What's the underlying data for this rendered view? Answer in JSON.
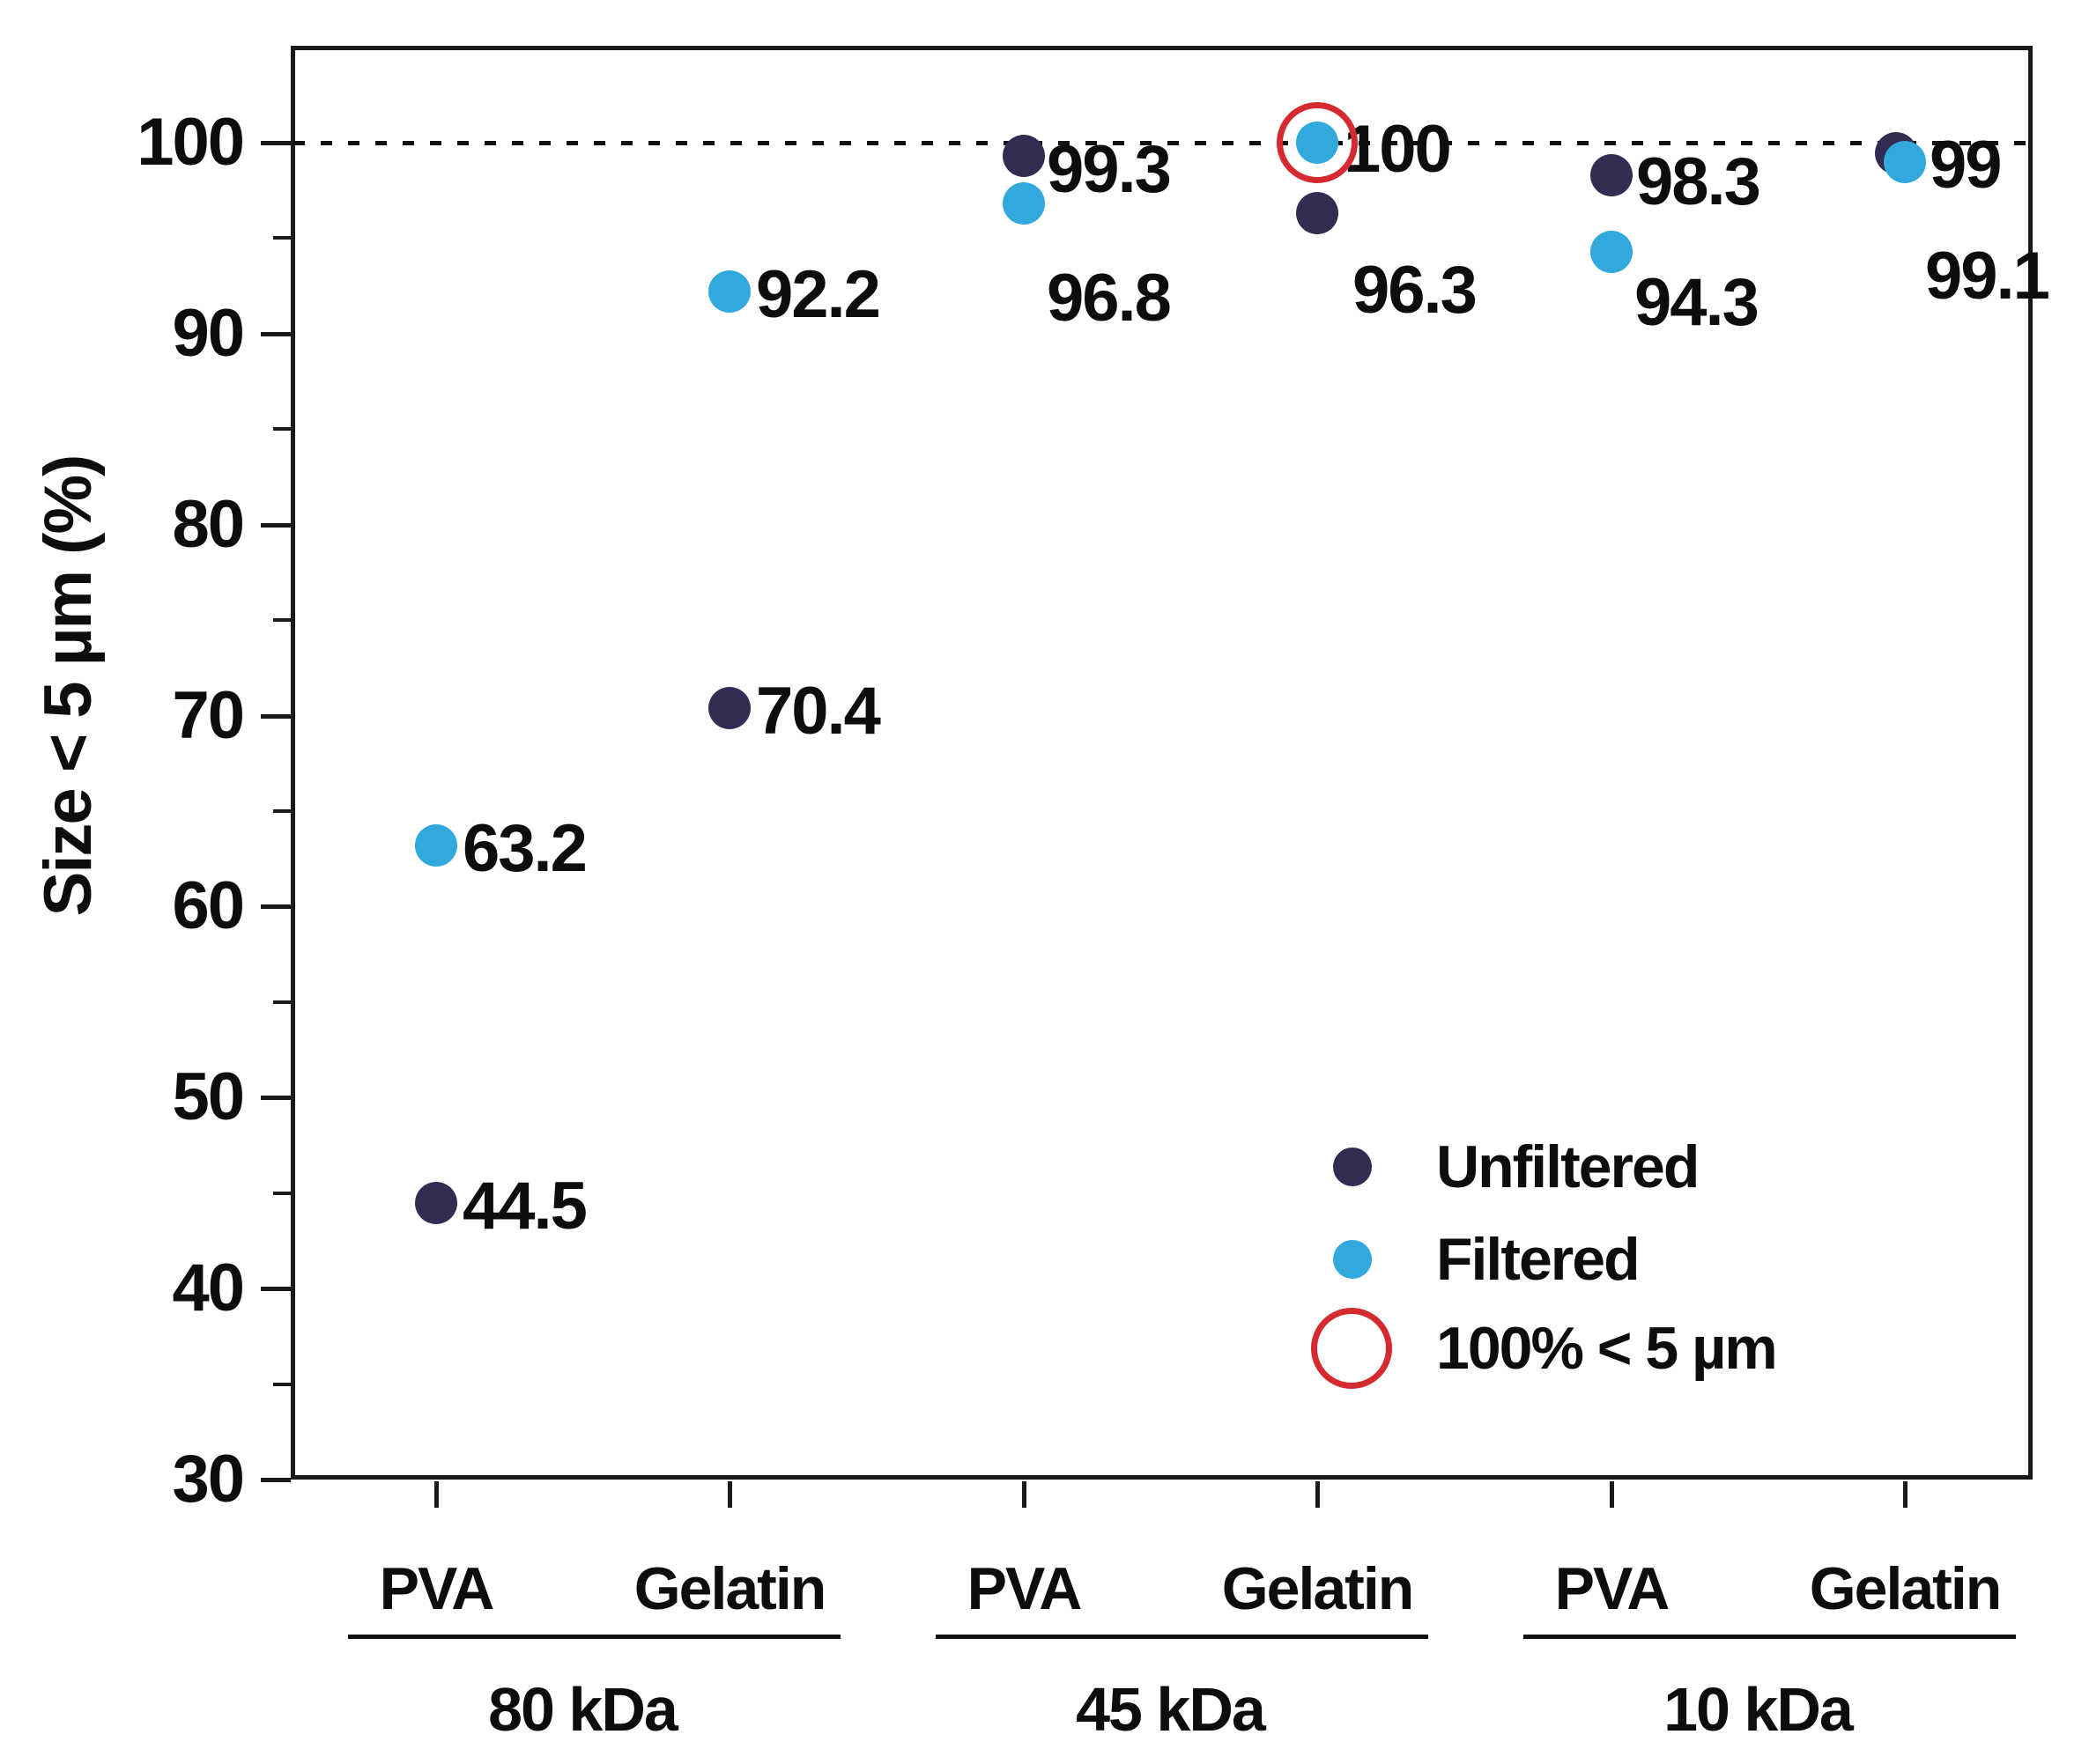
{
  "chart_data": {
    "type": "scatter",
    "title": "",
    "ylabel": "Size < 5 µm (%)",
    "xlabel": "",
    "ylim": [
      30,
      105
    ],
    "yticks": [
      30,
      40,
      50,
      60,
      70,
      80,
      90,
      100
    ],
    "yticks_minor": [
      35,
      45,
      55,
      65,
      75,
      85,
      95
    ],
    "reference_line_y": 100,
    "grid": false,
    "legend_position": "lower right",
    "groups": [
      {
        "label": "80 kDa",
        "categories": [
          "PVA",
          "Gelatin"
        ]
      },
      {
        "label": "45 kDa",
        "categories": [
          "PVA",
          "Gelatin"
        ]
      },
      {
        "label": "10 kDa",
        "categories": [
          "PVA",
          "Gelatin"
        ]
      }
    ],
    "series": [
      {
        "name": "Unfiltered",
        "color": "#332c52",
        "values": [
          44.5,
          70.4,
          99.3,
          96.3,
          98.3,
          99.1
        ],
        "point_labels": [
          "44.5",
          "70.4",
          "99.3",
          "96.3",
          "98.3",
          "99.1"
        ],
        "label_offsets": [
          [
            30,
            4
          ],
          [
            30,
            4
          ],
          [
            26,
            16
          ],
          [
            40,
            88
          ],
          [
            28,
            8
          ],
          [
            23,
            132
          ]
        ]
      },
      {
        "name": "Filtered",
        "color": "#31a9dc",
        "values": [
          63.2,
          92.2,
          96.8,
          100,
          94.3,
          99
        ],
        "point_labels": [
          "63.2",
          "92.2",
          "96.8",
          "100",
          "94.3",
          "99"
        ],
        "label_offsets": [
          [
            30,
            4
          ],
          [
            30,
            4
          ],
          [
            26,
            108
          ],
          [
            30,
            8
          ],
          [
            26,
            58
          ],
          [
            28,
            4
          ]
        ]
      }
    ],
    "highlight": {
      "series": "Filtered",
      "group": "45 kDa",
      "category": "Gelatin",
      "value": 100,
      "marker": "red-open-circle",
      "color": "#d52a30"
    },
    "legend": [
      {
        "label": "Unfiltered",
        "marker": "dot",
        "color": "#332c52"
      },
      {
        "label": "Filtered",
        "marker": "dot",
        "color": "#31a9dc"
      },
      {
        "label": "100% < 5 µm",
        "marker": "open-circle",
        "color": "#d52a30"
      }
    ]
  },
  "colors": {
    "background": "#ffffff",
    "axis": "#1a1a1a",
    "text": "#0d0d0d",
    "unfiltered": "#332c52",
    "filtered": "#31a9dc",
    "highlight_red": "#d52a30"
  }
}
